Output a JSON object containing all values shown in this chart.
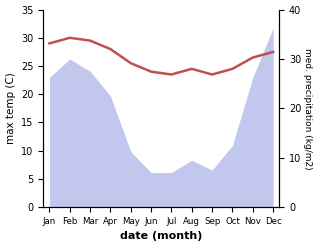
{
  "months": [
    "Jan",
    "Feb",
    "Mar",
    "Apr",
    "May",
    "Jun",
    "Jul",
    "Aug",
    "Sep",
    "Oct",
    "Nov",
    "Dec"
  ],
  "x": [
    0,
    1,
    2,
    3,
    4,
    5,
    6,
    7,
    8,
    9,
    10,
    11
  ],
  "temp_max": [
    29.0,
    30.0,
    29.5,
    28.0,
    25.5,
    24.0,
    23.5,
    24.5,
    23.5,
    24.5,
    26.5,
    27.5
  ],
  "precipitation": [
    105,
    120,
    110,
    90,
    45,
    28,
    28,
    38,
    30,
    50,
    105,
    145
  ],
  "left_ylim": [
    0,
    35
  ],
  "right_ylim": [
    0,
    46.67
  ],
  "right_ytick_vals": [
    0,
    10,
    20,
    30,
    40
  ],
  "left_ytick_vals": [
    0,
    5,
    10,
    15,
    20,
    25,
    30,
    35
  ],
  "xlabel": "date (month)",
  "ylabel_left": "max temp (C)",
  "ylabel_right": "med. precipitation (kg/m2)",
  "fill_color": "#adb5e8",
  "fill_alpha": 0.75,
  "line_color": "#c0504d",
  "line_width": 1.8,
  "background_color": "#ffffff",
  "precip_max_for_scale": 160
}
